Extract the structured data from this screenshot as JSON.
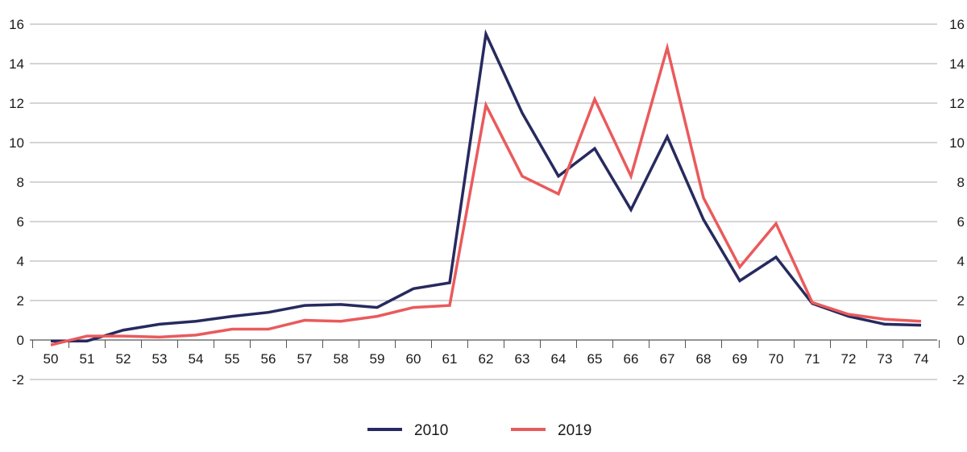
{
  "chart_data": {
    "type": "line",
    "x": [
      "50",
      "51",
      "52",
      "53",
      "54",
      "55",
      "56",
      "57",
      "58",
      "59",
      "60",
      "61",
      "62",
      "63",
      "64",
      "65",
      "66",
      "67",
      "68",
      "69",
      "70",
      "71",
      "72",
      "73",
      "74"
    ],
    "series": [
      {
        "name": "2010",
        "color": "#262a5e",
        "values": [
          -0.05,
          -0.05,
          0.5,
          0.8,
          0.95,
          1.2,
          1.4,
          1.75,
          1.8,
          1.65,
          2.6,
          2.9,
          15.5,
          11.5,
          8.3,
          9.7,
          6.6,
          10.3,
          6.1,
          3.0,
          4.2,
          1.85,
          1.2,
          0.8,
          0.75
        ]
      },
      {
        "name": "2019",
        "color": "#ea5a5c",
        "values": [
          -0.25,
          0.2,
          0.2,
          0.15,
          0.25,
          0.55,
          0.55,
          1.0,
          0.95,
          1.2,
          1.65,
          1.75,
          11.9,
          8.3,
          7.4,
          12.2,
          8.3,
          14.8,
          7.2,
          3.7,
          5.9,
          1.9,
          1.3,
          1.05,
          0.95
        ]
      }
    ],
    "yticks": [
      "-2",
      "0",
      "2",
      "4",
      "6",
      "8",
      "10",
      "12",
      "14",
      "16"
    ],
    "ylim": [
      -2,
      16
    ],
    "title": "",
    "xlabel": "",
    "ylabel": "",
    "grid": true,
    "legend_position": "bottom-center",
    "gridline_color": "#a8a8a8"
  }
}
